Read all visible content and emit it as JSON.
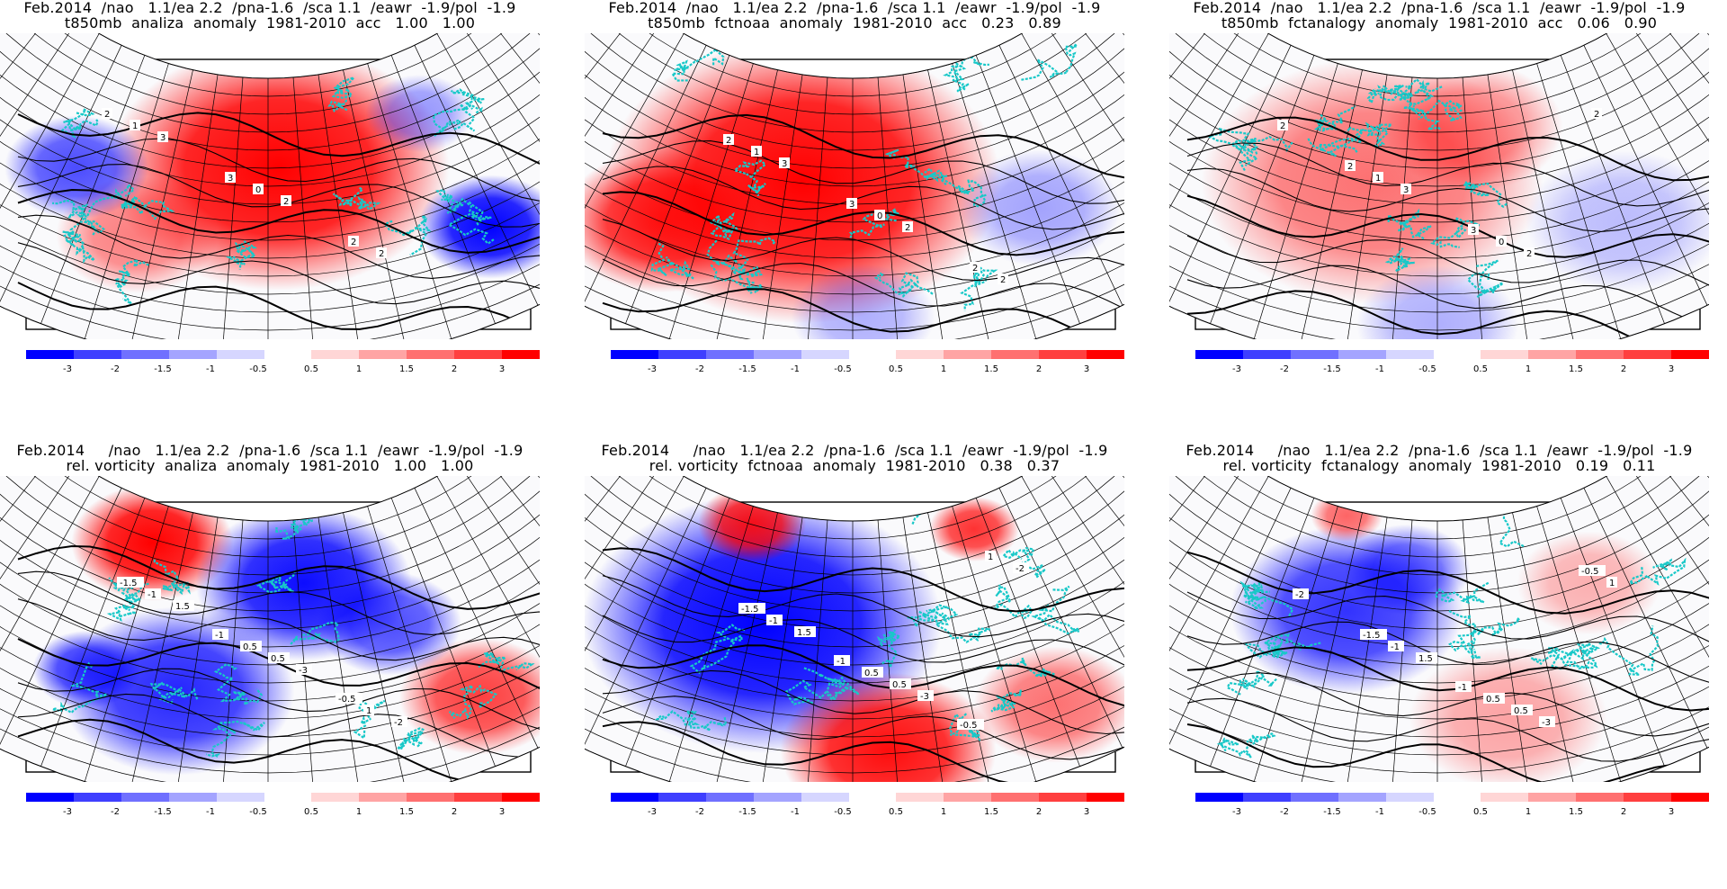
{
  "panels": [
    {
      "id": "t850-analiza",
      "title1": "Feb.2014  /nao   1.1/ea 2.2  /pna-1.6  /sca 1.1  /eawr  -1.9/pol  -1.9",
      "title2": "t850mb  analiza  anomaly  1981-2010  acc   1.00   1.00",
      "field": "t850",
      "pattern": "A"
    },
    {
      "id": "t850-fctnoaa",
      "title1": "Feb.2014  /nao   1.1/ea 2.2  /pna-1.6  /sca 1.1  /eawr  -1.9/pol  -1.9",
      "title2": "t850mb  fctnoaa  anomaly  1981-2010  acc   0.23   0.89",
      "field": "t850",
      "pattern": "B"
    },
    {
      "id": "t850-fctanalogy",
      "title1": "Feb.2014  /nao   1.1/ea 2.2  /pna-1.6  /sca 1.1  /eawr  -1.9/pol  -1.9",
      "title2": "t850mb  fctanalogy  anomaly  1981-2010  acc   0.06   0.90",
      "field": "t850",
      "pattern": "C"
    },
    {
      "id": "vort-analiza",
      "title1": "Feb.2014     /nao   1.1/ea 2.2  /pna-1.6  /sca 1.1  /eawr  -1.9/pol  -1.9",
      "title2": "rel. vorticity  analiza  anomaly  1981-2010   1.00   1.00",
      "field": "vort",
      "pattern": "D"
    },
    {
      "id": "vort-fctnoaa",
      "title1": "Feb.2014     /nao   1.1/ea 2.2  /pna-1.6  /sca 1.1  /eawr  -1.9/pol  -1.9",
      "title2": "rel. vorticity  fctnoaa  anomaly  1981-2010   0.38   0.37",
      "field": "vort",
      "pattern": "E"
    },
    {
      "id": "vort-fctanalogy",
      "title1": "Feb.2014     /nao   1.1/ea 2.2  /pna-1.6  /sca 1.1  /eawr  -1.9/pol  -1.9",
      "title2": "rel. vorticity  fctanalogy  anomaly  1981-2010   0.19   0.11",
      "field": "vort",
      "pattern": "F"
    }
  ],
  "colorbar": {
    "labels": [
      "-3",
      "-2",
      "-1.5",
      "-1",
      "-0.5",
      "0.5",
      "1",
      "1.5",
      "2",
      "3"
    ],
    "colors": [
      "#0000ff",
      "#3f3fff",
      "#7070ff",
      "#a4a4ff",
      "#d6d6ff",
      "#ffd6d6",
      "#ffa4a4",
      "#ff7070",
      "#ff3f3f",
      "#ff0000"
    ]
  },
  "colors": {
    "coast": "#18c8c8",
    "grid": "#000000",
    "contour": "#000000"
  }
}
